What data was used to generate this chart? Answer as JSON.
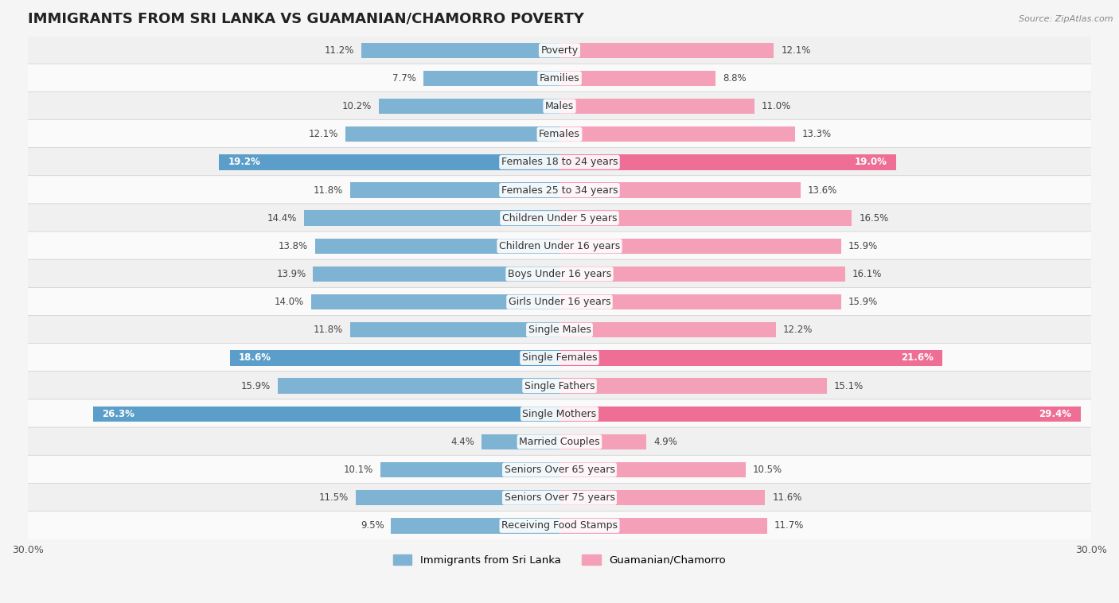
{
  "title": "IMMIGRANTS FROM SRI LANKA VS GUAMANIAN/CHAMORRO POVERTY",
  "source": "Source: ZipAtlas.com",
  "categories": [
    "Poverty",
    "Families",
    "Males",
    "Females",
    "Females 18 to 24 years",
    "Females 25 to 34 years",
    "Children Under 5 years",
    "Children Under 16 years",
    "Boys Under 16 years",
    "Girls Under 16 years",
    "Single Males",
    "Single Females",
    "Single Fathers",
    "Single Mothers",
    "Married Couples",
    "Seniors Over 65 years",
    "Seniors Over 75 years",
    "Receiving Food Stamps"
  ],
  "sri_lanka_values": [
    11.2,
    7.7,
    10.2,
    12.1,
    19.2,
    11.8,
    14.4,
    13.8,
    13.9,
    14.0,
    11.8,
    18.6,
    15.9,
    26.3,
    4.4,
    10.1,
    11.5,
    9.5
  ],
  "guamanian_values": [
    12.1,
    8.8,
    11.0,
    13.3,
    19.0,
    13.6,
    16.5,
    15.9,
    16.1,
    15.9,
    12.2,
    21.6,
    15.1,
    29.4,
    4.9,
    10.5,
    11.6,
    11.7
  ],
  "sri_lanka_color": "#7fb3d3",
  "guamanian_color": "#f4a0b8",
  "sri_lanka_highlight_color": "#5a9ec9",
  "guamanian_highlight_color": "#ee6e96",
  "highlight_rows": [
    4,
    11,
    13
  ],
  "xlim": 30.0,
  "legend_label_sri_lanka": "Immigrants from Sri Lanka",
  "legend_label_guamanian": "Guamanian/Chamorro",
  "background_color": "#f5f5f5",
  "row_bg_even": "#f0f0f0",
  "row_bg_odd": "#fafafa",
  "title_fontsize": 13,
  "label_fontsize": 9,
  "value_fontsize": 8.5
}
